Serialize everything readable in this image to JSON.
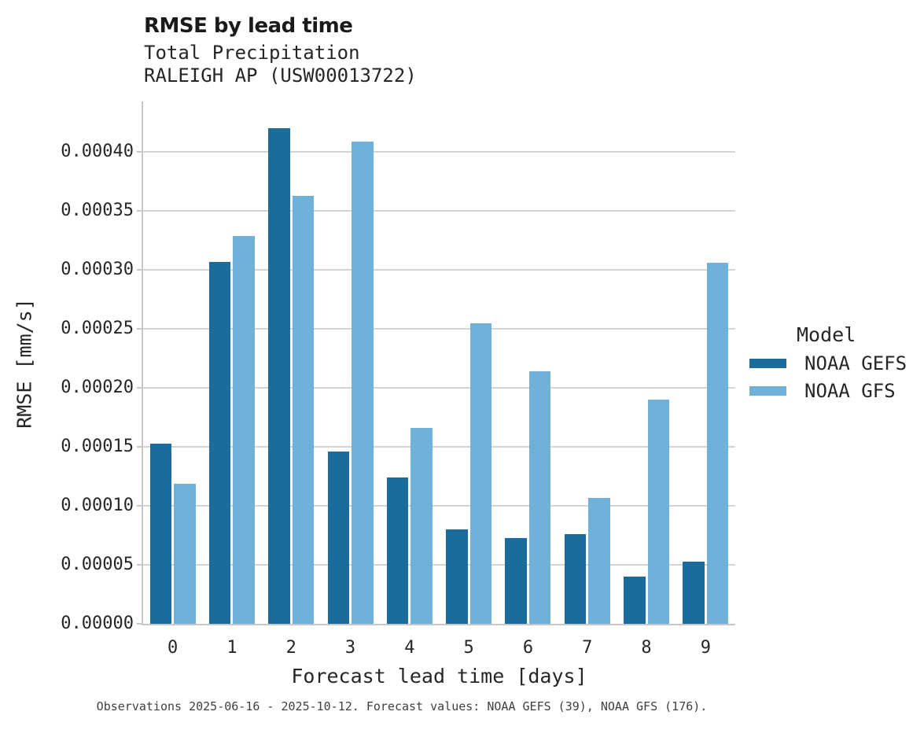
{
  "chart_data": {
    "type": "bar",
    "title": "RMSE by lead time",
    "subtitle1": "Total Precipitation",
    "subtitle2": "RALEIGH AP (USW00013722)",
    "footnote": "Observations 2025-06-16 - 2025-10-12. Forecast values: NOAA GEFS (39), NOAA GFS (176).",
    "xlabel": "Forecast lead time [days]",
    "ylabel": "RMSE [mm/s]",
    "categories": [
      "0",
      "1",
      "2",
      "3",
      "4",
      "5",
      "6",
      "7",
      "8",
      "9"
    ],
    "series": [
      {
        "name": "NOAA GEFS",
        "color": "#1a6c9c",
        "values": [
          0.000153,
          0.000307,
          0.00042,
          0.000146,
          0.000124,
          8e-05,
          7.3e-05,
          7.6e-05,
          4e-05,
          5.3e-05
        ]
      },
      {
        "name": "NOAA GFS",
        "color": "#6fb1d9",
        "values": [
          0.000119,
          0.000329,
          0.000363,
          0.000409,
          0.000166,
          0.000255,
          0.000214,
          0.000107,
          0.00019,
          0.000306
        ]
      }
    ],
    "ylim": [
      0,
      0.000443
    ],
    "yticks": [
      0.0,
      5e-05,
      0.0001,
      0.00015,
      0.0002,
      0.00025,
      0.0003,
      0.00035,
      0.0004
    ],
    "ytick_decimals": 5,
    "grid": "horizontal",
    "legend": {
      "title": "Model",
      "position": "right"
    },
    "colors": {
      "gridline": "#d4d4d4",
      "spine": "#c7c7c7"
    }
  }
}
